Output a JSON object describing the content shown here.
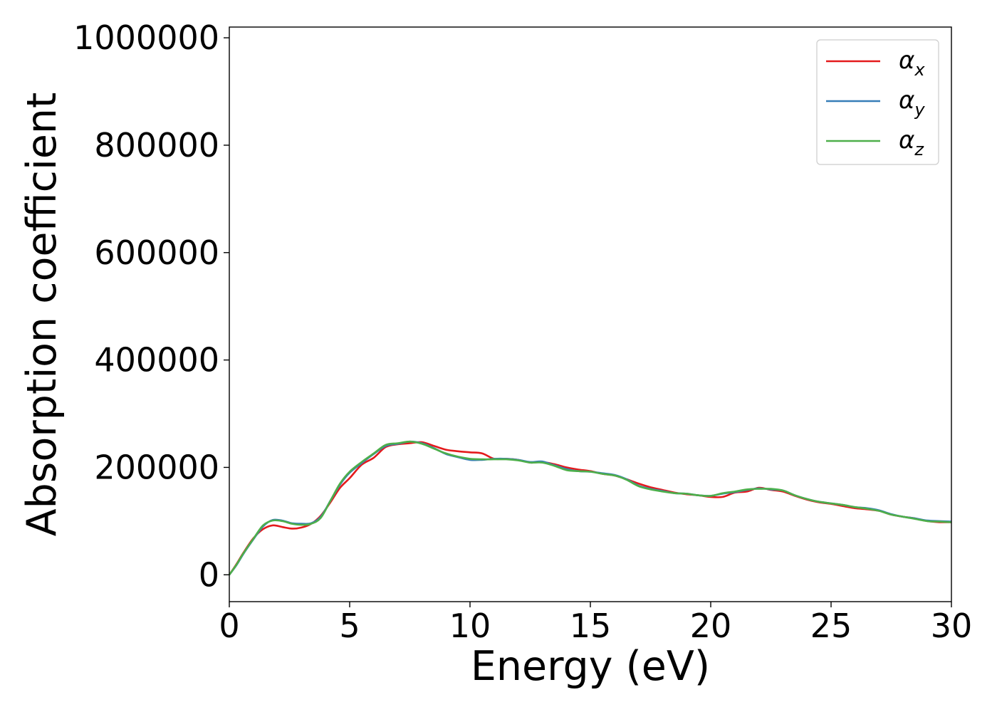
{
  "chart_data": {
    "type": "line",
    "title": "",
    "xlabel": "Energy (eV)",
    "ylabel": "Absorption coefficient",
    "xlim": [
      0,
      30
    ],
    "ylim": [
      -50000,
      1020000
    ],
    "xticks": [
      0,
      5,
      10,
      15,
      20,
      25,
      30
    ],
    "yticks": [
      0,
      200000,
      400000,
      600000,
      800000,
      1000000
    ],
    "grid": false,
    "legend_position": "top-right",
    "series": [
      {
        "name": "α",
        "subscript": "x",
        "color": "#e41a1c",
        "points": [
          [
            0,
            0
          ],
          [
            0.3,
            20000
          ],
          [
            0.6,
            42000
          ],
          [
            1.0,
            68000
          ],
          [
            1.4,
            85000
          ],
          [
            1.8,
            92000
          ],
          [
            2.2,
            89000
          ],
          [
            2.6,
            86000
          ],
          [
            3.0,
            88000
          ],
          [
            3.4,
            95000
          ],
          [
            3.8,
            110000
          ],
          [
            4.2,
            135000
          ],
          [
            4.6,
            162000
          ],
          [
            5.0,
            180000
          ],
          [
            5.5,
            205000
          ],
          [
            6.0,
            218000
          ],
          [
            6.5,
            238000
          ],
          [
            7.0,
            243000
          ],
          [
            7.5,
            245000
          ],
          [
            8.0,
            247000
          ],
          [
            8.5,
            240000
          ],
          [
            9.0,
            233000
          ],
          [
            9.5,
            230000
          ],
          [
            10.0,
            228000
          ],
          [
            10.5,
            226000
          ],
          [
            11.0,
            216000
          ],
          [
            11.5,
            216000
          ],
          [
            12.0,
            214000
          ],
          [
            12.5,
            209000
          ],
          [
            13.0,
            210000
          ],
          [
            13.5,
            206000
          ],
          [
            14.0,
            200000
          ],
          [
            14.5,
            196000
          ],
          [
            15.0,
            193000
          ],
          [
            15.5,
            188000
          ],
          [
            16.0,
            185000
          ],
          [
            16.5,
            178000
          ],
          [
            17.0,
            170000
          ],
          [
            17.5,
            163000
          ],
          [
            18.0,
            158000
          ],
          [
            18.5,
            153000
          ],
          [
            19.0,
            150000
          ],
          [
            19.5,
            148000
          ],
          [
            20.0,
            145000
          ],
          [
            20.5,
            145000
          ],
          [
            21.0,
            153000
          ],
          [
            21.5,
            155000
          ],
          [
            22.0,
            162000
          ],
          [
            22.5,
            158000
          ],
          [
            23.0,
            155000
          ],
          [
            23.5,
            147000
          ],
          [
            24.0,
            140000
          ],
          [
            24.5,
            135000
          ],
          [
            25.0,
            132000
          ],
          [
            25.5,
            128000
          ],
          [
            26.0,
            124000
          ],
          [
            26.5,
            122000
          ],
          [
            27.0,
            119000
          ],
          [
            27.5,
            112000
          ],
          [
            28.0,
            108000
          ],
          [
            28.5,
            105000
          ],
          [
            29.0,
            100000
          ],
          [
            29.5,
            98000
          ],
          [
            30.0,
            98000
          ]
        ]
      },
      {
        "name": "α",
        "subscript": "y",
        "color": "#377eb8",
        "points": [
          [
            0,
            0
          ],
          [
            0.3,
            18000
          ],
          [
            0.6,
            40000
          ],
          [
            1.0,
            66000
          ],
          [
            1.4,
            90000
          ],
          [
            1.8,
            102000
          ],
          [
            2.2,
            101000
          ],
          [
            2.6,
            96000
          ],
          [
            3.0,
            95000
          ],
          [
            3.4,
            96000
          ],
          [
            3.8,
            108000
          ],
          [
            4.2,
            138000
          ],
          [
            4.6,
            168000
          ],
          [
            5.0,
            190000
          ],
          [
            5.5,
            208000
          ],
          [
            6.0,
            225000
          ],
          [
            6.5,
            240000
          ],
          [
            7.0,
            244000
          ],
          [
            7.5,
            248000
          ],
          [
            8.0,
            245000
          ],
          [
            8.5,
            236000
          ],
          [
            9.0,
            225000
          ],
          [
            9.5,
            219000
          ],
          [
            10.0,
            214000
          ],
          [
            10.5,
            214000
          ],
          [
            11.0,
            216000
          ],
          [
            11.5,
            216000
          ],
          [
            12.0,
            214000
          ],
          [
            12.5,
            210000
          ],
          [
            13.0,
            211000
          ],
          [
            13.5,
            204000
          ],
          [
            14.0,
            197000
          ],
          [
            14.5,
            193000
          ],
          [
            15.0,
            192000
          ],
          [
            15.5,
            189000
          ],
          [
            16.0,
            186000
          ],
          [
            16.5,
            178000
          ],
          [
            17.0,
            166000
          ],
          [
            17.5,
            160000
          ],
          [
            18.0,
            156000
          ],
          [
            18.5,
            152000
          ],
          [
            19.0,
            151000
          ],
          [
            19.5,
            148000
          ],
          [
            20.0,
            147000
          ],
          [
            20.5,
            151000
          ],
          [
            21.0,
            154000
          ],
          [
            21.5,
            158000
          ],
          [
            22.0,
            161000
          ],
          [
            22.5,
            159000
          ],
          [
            23.0,
            157000
          ],
          [
            23.5,
            148000
          ],
          [
            24.0,
            141000
          ],
          [
            24.5,
            136000
          ],
          [
            25.0,
            133000
          ],
          [
            25.5,
            130000
          ],
          [
            26.0,
            126000
          ],
          [
            26.5,
            124000
          ],
          [
            27.0,
            120000
          ],
          [
            27.5,
            113000
          ],
          [
            28.0,
            108000
          ],
          [
            28.5,
            105000
          ],
          [
            29.0,
            101000
          ],
          [
            29.5,
            100000
          ],
          [
            30.0,
            99000
          ]
        ]
      },
      {
        "name": "α",
        "subscript": "z",
        "color": "#4daf4a",
        "points": [
          [
            0,
            0
          ],
          [
            0.3,
            19000
          ],
          [
            0.6,
            41000
          ],
          [
            1.0,
            67000
          ],
          [
            1.4,
            92000
          ],
          [
            1.8,
            101000
          ],
          [
            2.2,
            100000
          ],
          [
            2.6,
            95000
          ],
          [
            3.0,
            93000
          ],
          [
            3.4,
            95000
          ],
          [
            3.8,
            106000
          ],
          [
            4.2,
            138000
          ],
          [
            4.6,
            170000
          ],
          [
            5.0,
            192000
          ],
          [
            5.5,
            210000
          ],
          [
            6.0,
            226000
          ],
          [
            6.5,
            242000
          ],
          [
            7.0,
            245000
          ],
          [
            7.5,
            248000
          ],
          [
            8.0,
            244000
          ],
          [
            8.5,
            235000
          ],
          [
            9.0,
            226000
          ],
          [
            9.5,
            220000
          ],
          [
            10.0,
            216000
          ],
          [
            10.5,
            215000
          ],
          [
            11.0,
            215000
          ],
          [
            11.5,
            215000
          ],
          [
            12.0,
            213000
          ],
          [
            12.5,
            209000
          ],
          [
            13.0,
            209000
          ],
          [
            13.5,
            203000
          ],
          [
            14.0,
            195000
          ],
          [
            14.5,
            193000
          ],
          [
            15.0,
            192000
          ],
          [
            15.5,
            188000
          ],
          [
            16.0,
            185000
          ],
          [
            16.5,
            177000
          ],
          [
            17.0,
            165000
          ],
          [
            17.5,
            159000
          ],
          [
            18.0,
            155000
          ],
          [
            18.5,
            152000
          ],
          [
            19.0,
            151000
          ],
          [
            19.5,
            148000
          ],
          [
            20.0,
            147000
          ],
          [
            20.5,
            152000
          ],
          [
            21.0,
            155000
          ],
          [
            21.5,
            159000
          ],
          [
            22.0,
            160000
          ],
          [
            22.5,
            160000
          ],
          [
            23.0,
            157000
          ],
          [
            23.5,
            148000
          ],
          [
            24.0,
            141000
          ],
          [
            24.5,
            136000
          ],
          [
            25.0,
            133000
          ],
          [
            25.5,
            130000
          ],
          [
            26.0,
            126000
          ],
          [
            26.5,
            123000
          ],
          [
            27.0,
            119000
          ],
          [
            27.5,
            112000
          ],
          [
            28.0,
            108000
          ],
          [
            28.5,
            104000
          ],
          [
            29.0,
            100000
          ],
          [
            29.5,
            99000
          ],
          [
            30.0,
            98000
          ]
        ]
      }
    ]
  }
}
